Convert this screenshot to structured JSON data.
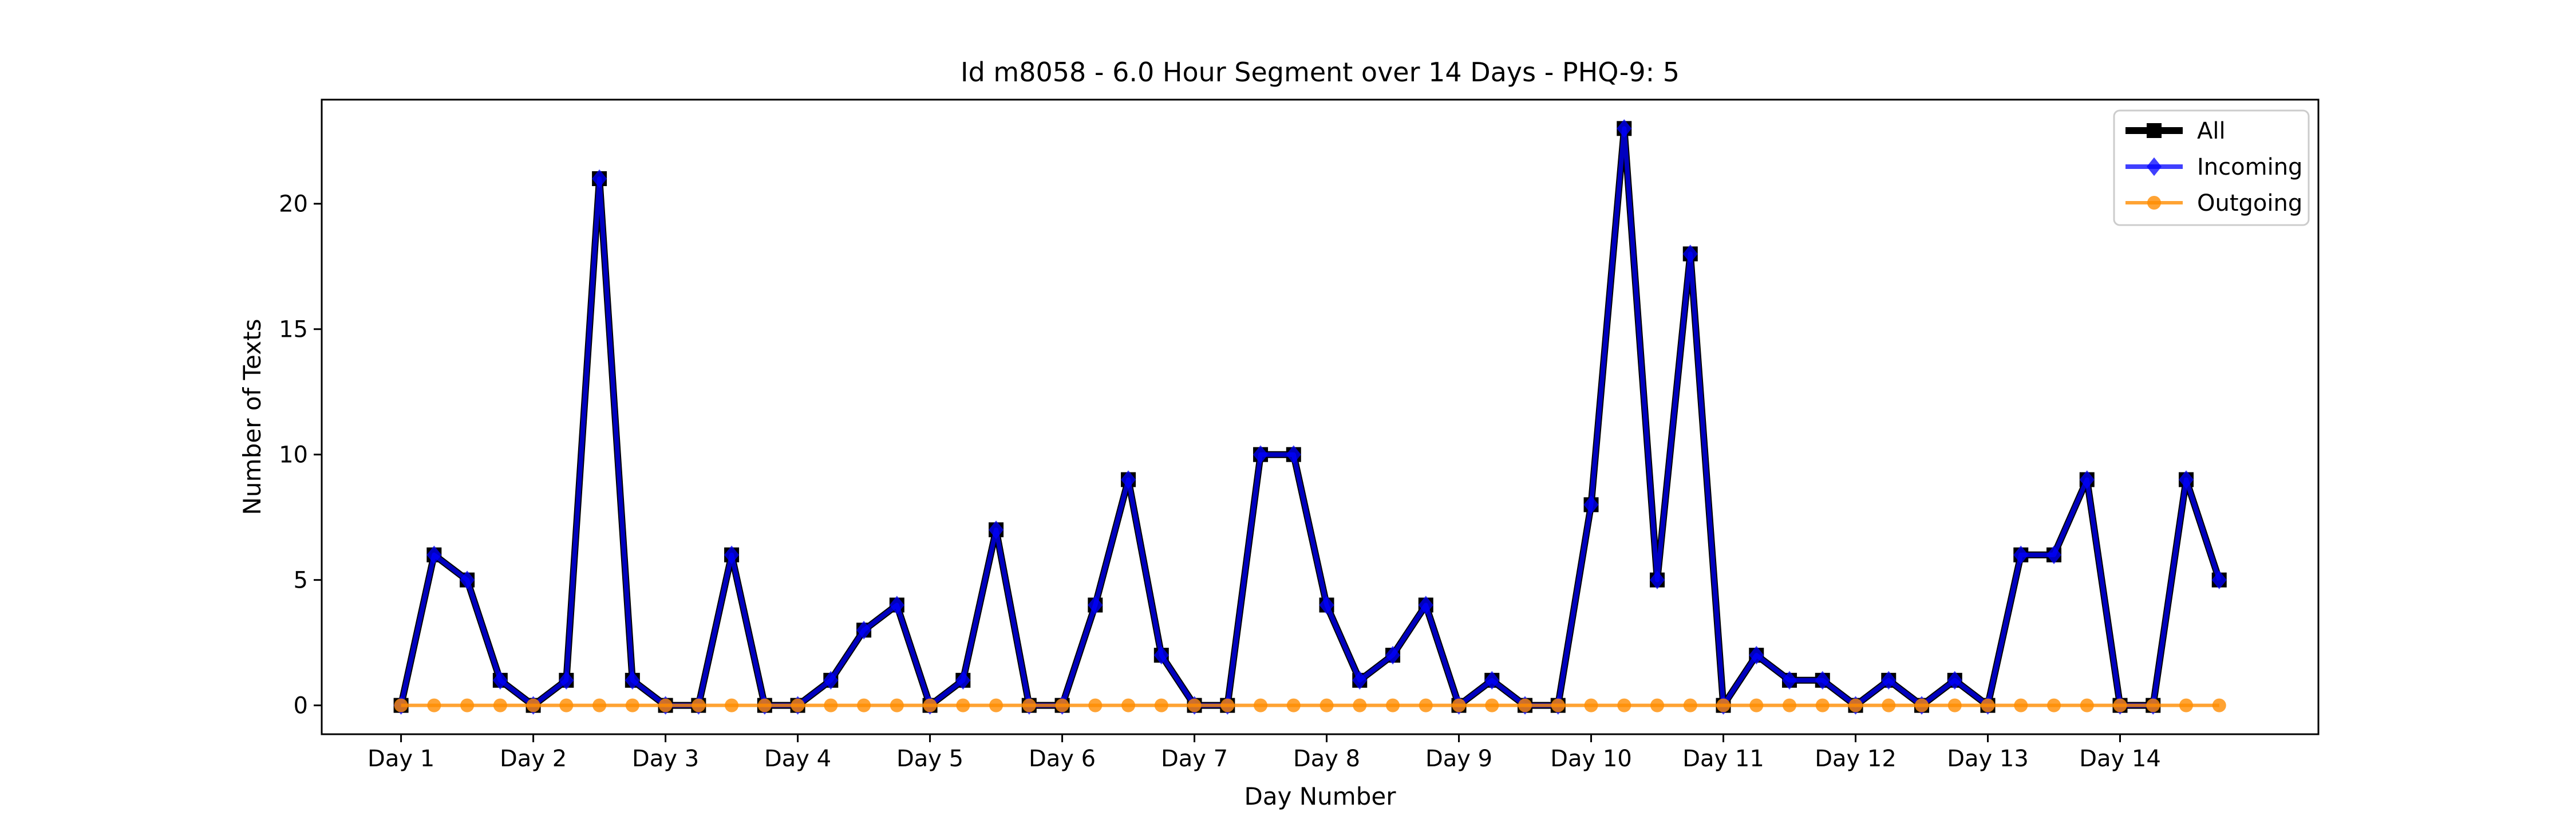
{
  "chart_data": {
    "type": "line",
    "title": "Id m8058 - 6.0 Hour Segment over 14 Days - PHQ-9: 5",
    "xlabel": "Day Number",
    "ylabel": "Number of Texts",
    "xtick_labels": [
      "Day 1",
      "Day 2",
      "Day 3",
      "Day 4",
      "Day 5",
      "Day 6",
      "Day 7",
      "Day 8",
      "Day 9",
      "Day 10",
      "Day 11",
      "Day 12",
      "Day 13",
      "Day 14"
    ],
    "x": [
      1,
      1.25,
      1.5,
      1.75,
      2,
      2.25,
      2.5,
      2.75,
      3,
      3.25,
      3.5,
      3.75,
      4,
      4.25,
      4.5,
      4.75,
      5,
      5.25,
      5.5,
      5.75,
      6,
      6.25,
      6.5,
      6.75,
      7,
      7.25,
      7.5,
      7.75,
      8,
      8.25,
      8.5,
      8.75,
      9,
      9.25,
      9.5,
      9.75,
      10,
      10.25,
      10.5,
      10.75,
      11,
      11.25,
      11.5,
      11.75,
      12,
      12.25,
      12.5,
      12.75,
      13,
      13.25,
      13.5,
      13.75,
      14,
      14.25,
      14.5,
      14.75
    ],
    "xlim": [
      0.4,
      15.5
    ],
    "ylim": [
      -1.15,
      24.15
    ],
    "yticks": [
      0,
      5,
      10,
      15,
      20
    ],
    "grid": false,
    "legend_position": "top-right",
    "series": [
      {
        "name": "All",
        "color": "#000000",
        "marker": "square",
        "values": [
          0,
          6,
          5,
          1,
          0,
          1,
          21,
          1,
          0,
          0,
          6,
          0,
          0,
          1,
          3,
          4,
          0,
          1,
          7,
          0,
          0,
          4,
          9,
          2,
          0,
          0,
          10,
          10,
          4,
          1,
          2,
          4,
          0,
          1,
          0,
          0,
          8,
          23,
          5,
          18,
          0,
          2,
          1,
          1,
          0,
          1,
          0,
          1,
          0,
          6,
          6,
          9,
          0,
          0,
          9,
          5
        ]
      },
      {
        "name": "Incoming",
        "color": "#0000ff",
        "marker": "diamond",
        "values": [
          0,
          6,
          5,
          1,
          0,
          1,
          21,
          1,
          0,
          0,
          6,
          0,
          0,
          1,
          3,
          4,
          0,
          1,
          7,
          0,
          0,
          4,
          9,
          2,
          0,
          0,
          10,
          10,
          4,
          1,
          2,
          4,
          0,
          1,
          0,
          0,
          8,
          23,
          5,
          18,
          0,
          2,
          1,
          1,
          0,
          1,
          0,
          1,
          0,
          6,
          6,
          9,
          0,
          0,
          9,
          5
        ]
      },
      {
        "name": "Outgoing",
        "color": "#ff8c00",
        "marker": "circle",
        "values": [
          0,
          0,
          0,
          0,
          0,
          0,
          0,
          0,
          0,
          0,
          0,
          0,
          0,
          0,
          0,
          0,
          0,
          0,
          0,
          0,
          0,
          0,
          0,
          0,
          0,
          0,
          0,
          0,
          0,
          0,
          0,
          0,
          0,
          0,
          0,
          0,
          0,
          0,
          0,
          0,
          0,
          0,
          0,
          0,
          0,
          0,
          0,
          0,
          0,
          0,
          0,
          0,
          0,
          0,
          0,
          0
        ]
      }
    ]
  }
}
